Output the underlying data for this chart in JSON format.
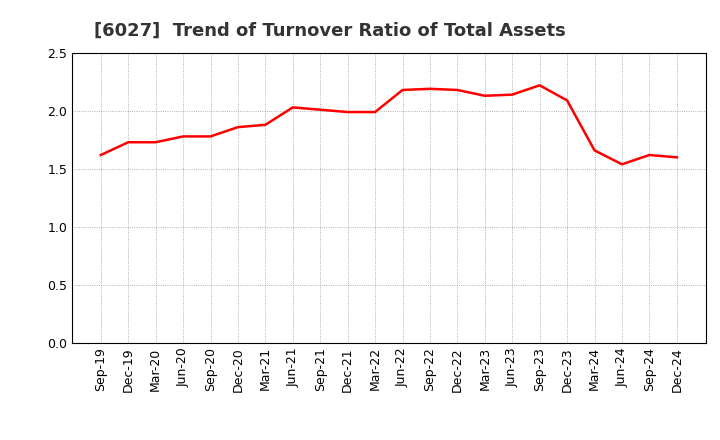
{
  "title": "[6027]  Trend of Turnover Ratio of Total Assets",
  "x_labels": [
    "Sep-19",
    "Dec-19",
    "Mar-20",
    "Jun-20",
    "Sep-20",
    "Dec-20",
    "Mar-21",
    "Jun-21",
    "Sep-21",
    "Dec-21",
    "Mar-22",
    "Jun-22",
    "Sep-22",
    "Dec-22",
    "Mar-23",
    "Jun-23",
    "Sep-23",
    "Dec-23",
    "Mar-24",
    "Jun-24",
    "Sep-24",
    "Dec-24"
  ],
  "y_values": [
    1.62,
    1.73,
    1.73,
    1.78,
    1.78,
    1.86,
    1.88,
    2.03,
    2.01,
    1.99,
    1.99,
    2.18,
    2.19,
    2.18,
    2.13,
    2.14,
    2.22,
    2.09,
    1.66,
    1.54,
    1.62,
    1.6
  ],
  "line_color": "#ff0000",
  "ylim": [
    0.0,
    2.5
  ],
  "yticks": [
    0.0,
    0.5,
    1.0,
    1.5,
    2.0,
    2.5
  ],
  "grid_color": "#999999",
  "background_color": "#ffffff",
  "title_fontsize": 13,
  "tick_fontsize": 9,
  "spine_color": "#000000"
}
